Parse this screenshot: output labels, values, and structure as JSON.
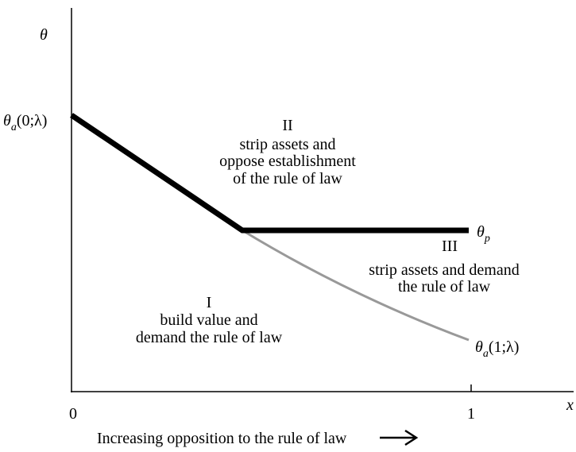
{
  "axes": {
    "y_label": "θ",
    "x_label": "x",
    "origin_tick": "0",
    "end_tick": "1",
    "caption": "Increasing opposition to the rule of law"
  },
  "curve_labels": {
    "theta_a0": {
      "symbol": "θ",
      "subscript": "a",
      "argument": "(0;λ)"
    },
    "theta_p": {
      "symbol": "θ",
      "subscript": "p"
    },
    "theta_a1": {
      "symbol": "θ",
      "subscript": "a",
      "argument": "(1;λ)"
    }
  },
  "regions": [
    {
      "numeral": "I",
      "lines": [
        "build value and",
        "demand the rule of law"
      ]
    },
    {
      "numeral": "II",
      "lines": [
        "strip assets and",
        "oppose establishment",
        "of the rule of law"
      ]
    },
    {
      "numeral": "III",
      "lines": [
        "strip assets and demand",
        "the rule of law"
      ]
    }
  ]
}
